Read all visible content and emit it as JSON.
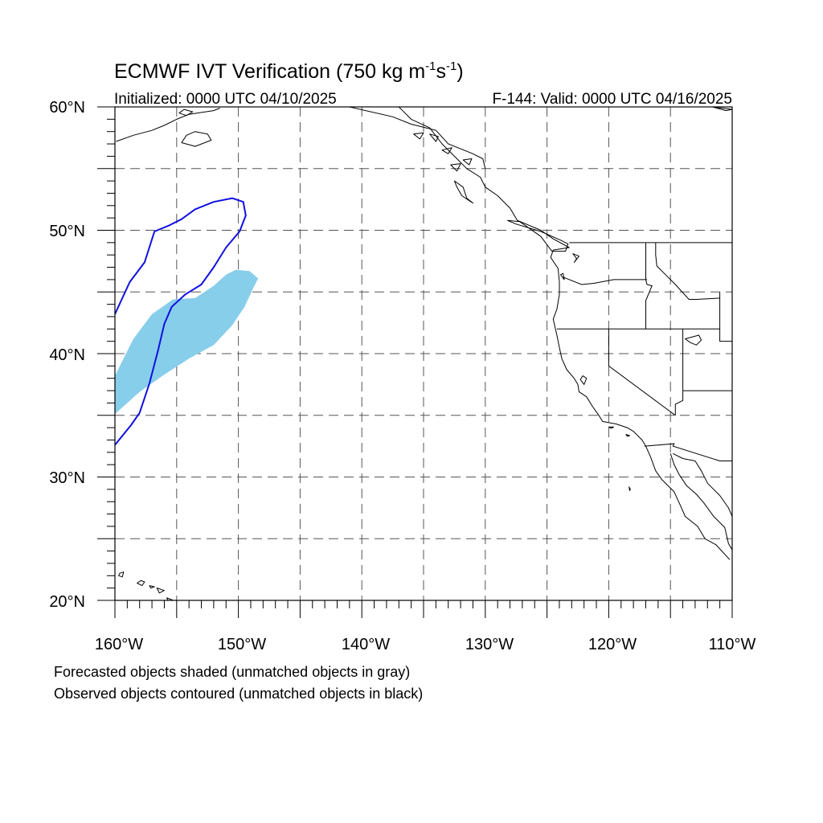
{
  "title": {
    "main": "ECMWF IVT Verification (750 kg m",
    "exp1": "-1",
    "mid": "s",
    "exp2": "-1",
    "end": ")"
  },
  "subtitle_left": "Initialized: 0000 UTC 04/10/2025",
  "subtitle_right": "F-144: Valid: 0000 UTC 04/16/2025",
  "axes": {
    "lon_range": [
      -160,
      -110
    ],
    "lat_range": [
      20,
      60
    ],
    "x_labels": [
      "160°W",
      "150°W",
      "140°W",
      "130°W",
      "120°W",
      "110°W"
    ],
    "y_labels": [
      "60°N",
      "50°N",
      "40°N",
      "30°N",
      "20°N"
    ],
    "grid": "dashed, every 5 degrees"
  },
  "footnotes": [
    "Forecasted objects shaded (unmatched objects in gray)",
    "Observed objects contoured (unmatched objects in black)"
  ],
  "colors": {
    "forecast_fill": "#87ceeb",
    "observed_contour": "#1010e0",
    "coast": "#000000",
    "grid": "#555555"
  },
  "objects": {
    "forecast": {
      "color": "#87ceeb",
      "outline": [
        [
          -160,
          35.1
        ],
        [
          -158,
          36.9
        ],
        [
          -156,
          38.3
        ],
        [
          -154,
          39.6
        ],
        [
          -152,
          40.7
        ],
        [
          -150.5,
          42.3
        ],
        [
          -149.5,
          43.8
        ],
        [
          -148.8,
          45.3
        ],
        [
          -148.4,
          46.1
        ],
        [
          -149.1,
          46.7
        ],
        [
          -150.2,
          46.8
        ],
        [
          -151,
          46.4
        ],
        [
          -152,
          45.5
        ],
        [
          -153.5,
          44.5
        ],
        [
          -155.3,
          44.4
        ],
        [
          -157,
          43.2
        ],
        [
          -158.5,
          41.2
        ],
        [
          -160,
          38.2
        ]
      ]
    },
    "observed": {
      "color": "#1010e0",
      "path": [
        [
          -160,
          32.6
        ],
        [
          -158.7,
          34.2
        ],
        [
          -158,
          35.2
        ],
        [
          -157.2,
          37.6
        ],
        [
          -156.5,
          40.3
        ],
        [
          -156,
          42.4
        ],
        [
          -155.4,
          43.8
        ],
        [
          -154.3,
          44.8
        ],
        [
          -153,
          45.6
        ],
        [
          -152,
          47
        ],
        [
          -151,
          48.6
        ],
        [
          -149.9,
          49.9
        ],
        [
          -149.4,
          51.2
        ],
        [
          -149.6,
          52.3
        ],
        [
          -150.5,
          52.6
        ],
        [
          -152,
          52.3
        ],
        [
          -153.5,
          51.7
        ],
        [
          -154.6,
          50.9
        ],
        [
          -155.6,
          50.4
        ],
        [
          -156.8,
          49.9
        ],
        [
          -157.6,
          47.4
        ],
        [
          -158.8,
          45.8
        ],
        [
          -160,
          43.2
        ]
      ]
    }
  },
  "map_features": {
    "coastline_na": [
      [
        -137,
        60
      ],
      [
        -136.5,
        59.5
      ],
      [
        -136,
        59
      ],
      [
        -134.5,
        58.3
      ],
      [
        -133.5,
        57
      ],
      [
        -132.5,
        56
      ],
      [
        -131.5,
        55
      ],
      [
        -130.4,
        54.3
      ],
      [
        -130,
        53.5
      ],
      [
        -129,
        52.8
      ],
      [
        -128,
        51.8
      ],
      [
        -127.4,
        50.8
      ],
      [
        -125.5,
        50
      ],
      [
        -124.5,
        49.3
      ],
      [
        -123.2,
        48.6
      ],
      [
        -124.5,
        48.4
      ],
      [
        -124.7,
        47.8
      ],
      [
        -124.1,
        46.9
      ],
      [
        -124,
        45.8
      ],
      [
        -124,
        44.8
      ],
      [
        -124.2,
        43.6
      ],
      [
        -124.5,
        42.8
      ],
      [
        -124.2,
        41.5
      ],
      [
        -124,
        40.5
      ],
      [
        -123.8,
        39.6
      ],
      [
        -123.4,
        38.7
      ],
      [
        -122.8,
        38
      ],
      [
        -122.5,
        37.5
      ],
      [
        -122.4,
        36.9
      ],
      [
        -121.8,
        36.5
      ],
      [
        -121.3,
        35.7
      ],
      [
        -120.8,
        35
      ],
      [
        -120.5,
        34.5
      ],
      [
        -119.4,
        34.3
      ],
      [
        -118.5,
        34
      ],
      [
        -118,
        33.7
      ],
      [
        -117.3,
        33
      ],
      [
        -117,
        32.5
      ],
      [
        -116.6,
        31.6
      ],
      [
        -116.2,
        30.5
      ],
      [
        -115.7,
        29.8
      ],
      [
        -114.7,
        28.8
      ],
      [
        -114.2,
        27.7
      ],
      [
        -113.8,
        26.8
      ],
      [
        -112.8,
        26
      ],
      [
        -112.2,
        25
      ],
      [
        -111.3,
        24.5
      ],
      [
        -110.2,
        23.3
      ]
    ],
    "coastline_gulf": [
      [
        -115,
        31.9
      ],
      [
        -114.7,
        31
      ],
      [
        -114.3,
        30.2
      ],
      [
        -113.7,
        29.3
      ],
      [
        -112.9,
        28.6
      ],
      [
        -112.3,
        27.9
      ],
      [
        -111.5,
        26.8
      ],
      [
        -110.6,
        25.9
      ],
      [
        -110.3,
        24.6
      ],
      [
        -110,
        24.1
      ]
    ],
    "coastline_mainland_mx": [
      [
        -114.8,
        31.9
      ],
      [
        -114,
        31.5
      ],
      [
        -113,
        31.3
      ],
      [
        -112.5,
        30.5
      ],
      [
        -112,
        29.5
      ],
      [
        -111,
        28.5
      ],
      [
        -110.3,
        27.5
      ],
      [
        -110,
        26.8
      ]
    ],
    "coastline_ak_west": [
      [
        -159.9,
        57.2
      ],
      [
        -158.5,
        57.7
      ],
      [
        -157,
        58.1
      ],
      [
        -156,
        58.5
      ],
      [
        -155,
        59
      ],
      [
        -154,
        59.4
      ],
      [
        -152,
        59.7
      ],
      [
        -151.5,
        59.9
      ]
    ],
    "border_canada_us": [
      [
        -123.2,
        49
      ],
      [
        -110,
        49
      ]
    ],
    "border_us_mexico": [
      [
        -117.1,
        32.5
      ],
      [
        -114.7,
        32.7
      ],
      [
        -114.8,
        32.5
      ],
      [
        -111,
        31.3
      ],
      [
        -110,
        31.3
      ]
    ],
    "border_ak_canada": [
      [
        -141,
        60
      ],
      [
        -137.5,
        59.2
      ],
      [
        -136,
        58.6
      ],
      [
        -134,
        58.1
      ],
      [
        -133,
        57
      ],
      [
        -131,
        56.2
      ],
      [
        -130.2,
        55.8
      ],
      [
        -130,
        55
      ]
    ],
    "states": [
      [
        [
          -124.2,
          42
        ],
        [
          -111,
          42
        ]
      ],
      [
        [
          -117,
          49
        ],
        [
          -117,
          46
        ],
        [
          -116.9,
          45.6
        ],
        [
          -116.5,
          45.5
        ],
        [
          -117,
          44.3
        ],
        [
          -117,
          42
        ]
      ],
      [
        [
          -123.7,
          46.2
        ],
        [
          -122.2,
          45.6
        ],
        [
          -121.2,
          45.7
        ],
        [
          -119.6,
          46
        ],
        [
          -116.9,
          46
        ]
      ],
      [
        [
          -120,
          42
        ],
        [
          -120,
          39
        ],
        [
          -114.6,
          35
        ]
      ],
      [
        [
          -114,
          42
        ],
        [
          -114,
          36.2
        ],
        [
          -114.6,
          35.9
        ],
        [
          -114.6,
          35
        ]
      ],
      [
        [
          -116.2,
          49
        ],
        [
          -116.2,
          48
        ],
        [
          -116.1,
          47.1
        ],
        [
          -115.5,
          46.5
        ],
        [
          -114.6,
          45.6
        ],
        [
          -113.5,
          44.4
        ],
        [
          -112.9,
          44.4
        ],
        [
          -111,
          44.5
        ]
      ],
      [
        [
          -111,
          45
        ],
        [
          -111,
          41
        ],
        [
          -110,
          41
        ]
      ],
      [
        [
          -114,
          37
        ],
        [
          -110,
          37
        ]
      ]
    ],
    "islands": [
      [
        [
          -159.6,
          22.2
        ],
        [
          -159.3,
          22.3
        ],
        [
          -159.4,
          21.9
        ],
        [
          -159.7,
          22
        ]
      ],
      [
        [
          -157.9,
          21.6
        ],
        [
          -157.6,
          21.5
        ],
        [
          -157.8,
          21.2
        ],
        [
          -158.2,
          21.4
        ]
      ],
      [
        [
          -157.2,
          21.2
        ],
        [
          -156.8,
          21.1
        ],
        [
          -157.1,
          21
        ]
      ],
      [
        [
          -156.6,
          21
        ],
        [
          -156,
          20.8
        ],
        [
          -156.4,
          20.6
        ]
      ],
      [
        [
          -155.8,
          20.2
        ],
        [
          -155,
          19.9
        ],
        [
          -155.5,
          19.6
        ]
      ],
      [
        [
          -120,
          34.05
        ],
        [
          -119.6,
          34.05
        ],
        [
          -119.8,
          33.95
        ]
      ],
      [
        [
          -118.6,
          33.45
        ],
        [
          -118.3,
          33.35
        ],
        [
          -118.5,
          33.3
        ]
      ],
      [
        [
          -113.8,
          41.2
        ],
        [
          -112.7,
          41.5
        ],
        [
          -112.5,
          41.1
        ],
        [
          -112.9,
          40.7
        ],
        [
          -113.4,
          40.9
        ]
      ],
      [
        [
          -118.35,
          29.2
        ],
        [
          -118.25,
          29
        ],
        [
          -118.3,
          28.9
        ]
      ],
      [
        [
          -124.6,
          48.3
        ],
        [
          -123.5,
          48.3
        ],
        [
          -123.3,
          48.9
        ],
        [
          -123.9,
          49.2
        ],
        [
          -125.5,
          49.9
        ],
        [
          -127.5,
          50.5
        ],
        [
          -128.2,
          50.8
        ],
        [
          -127.2,
          50.7
        ],
        [
          -125.5,
          49.5
        ]
      ],
      [
        [
          -132.5,
          54
        ],
        [
          -131.8,
          53.5
        ],
        [
          -131.5,
          52.6
        ],
        [
          -131,
          52.2
        ],
        [
          -131.9,
          52.8
        ],
        [
          -132.3,
          53.5
        ]
      ],
      [
        [
          -153.5,
          58
        ],
        [
          -152.5,
          57.8
        ],
        [
          -152.2,
          57.3
        ],
        [
          -153.5,
          56.8
        ],
        [
          -154.6,
          57.1
        ],
        [
          -154.2,
          57.7
        ]
      ],
      [
        [
          -154.8,
          59.5
        ],
        [
          -154.2,
          59.3
        ],
        [
          -153.7,
          59.6
        ],
        [
          -154.4,
          59.8
        ]
      ],
      [
        [
          -133.5,
          56.5
        ],
        [
          -133,
          56.2
        ],
        [
          -132.7,
          56.7
        ]
      ],
      [
        [
          -134.5,
          57.8
        ],
        [
          -134,
          57.2
        ],
        [
          -133.8,
          57.6
        ]
      ],
      [
        [
          -135.8,
          57.8
        ],
        [
          -135.3,
          57.4
        ],
        [
          -135,
          57.9
        ]
      ],
      [
        [
          -131.8,
          55.7
        ],
        [
          -131.3,
          55.3
        ],
        [
          -131.1,
          55.8
        ]
      ],
      [
        [
          -132.8,
          55.3
        ],
        [
          -132.3,
          54.8
        ],
        [
          -132,
          55.4
        ]
      ],
      [
        [
          -123.9,
          46.4
        ],
        [
          -123.6,
          46
        ],
        [
          -123.7,
          46.5
        ]
      ],
      [
        [
          -122.9,
          48.1
        ],
        [
          -122.6,
          47.7
        ],
        [
          -122.8,
          47.4
        ],
        [
          -122.4,
          47.9
        ]
      ],
      [
        [
          -122.3,
          37.9
        ],
        [
          -122,
          37.5
        ],
        [
          -121.8,
          38
        ],
        [
          -122.1,
          38.2
        ]
      ],
      [
        [
          -111.6,
          60
        ],
        [
          -110.5,
          59.7
        ],
        [
          -110,
          59.8
        ]
      ]
    ]
  }
}
